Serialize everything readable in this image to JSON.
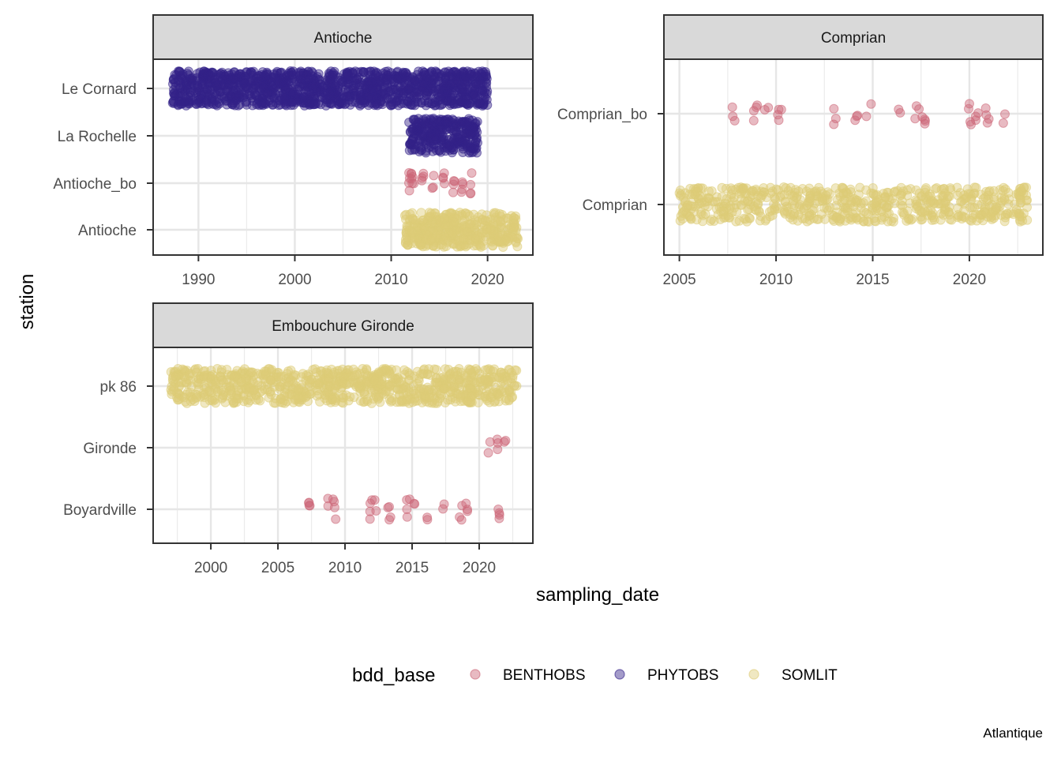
{
  "chart_data": {
    "type": "scatter",
    "x_title": "sampling_date",
    "y_title": "station",
    "legend": {
      "title": "bdd_base",
      "position": "bottom",
      "items": [
        {
          "name": "BENTHOBS",
          "color": "#cc6677"
        },
        {
          "name": "PHYTOBS",
          "color": "#332288"
        },
        {
          "name": "SOMLIT",
          "color": "#ddcc77"
        }
      ]
    },
    "caption": "Atlantique",
    "grid": true,
    "facets": [
      {
        "title": "Antioche",
        "x_ticks": [
          1990,
          2000,
          2010,
          2020
        ],
        "xlim": [
          1985.3,
          2024.7
        ],
        "stations": [
          "Antioche",
          "Antioche_bo",
          "La Rochelle",
          "Le Cornard"
        ],
        "series": [
          {
            "name": "PHYTOBS",
            "station": "Le Cornard",
            "x_range": [
              1987.3,
              2020.0
            ]
          },
          {
            "name": "PHYTOBS",
            "station": "La Rochelle",
            "x_range": [
              2011.8,
              2019.0
            ]
          },
          {
            "name": "BENTHOBS",
            "station": "Antioche_bo",
            "x": [
              2011.8,
              2012.0,
              2012.3,
              2013.3,
              2014.3,
              2015.5,
              2016.5,
              2017.3,
              2018.3
            ]
          },
          {
            "name": "SOMLIT",
            "station": "Antioche",
            "x_range": [
              2011.3,
              2023.2
            ]
          }
        ]
      },
      {
        "title": "Comprian",
        "x_ticks": [
          2005,
          2010,
          2015,
          2020
        ],
        "xlim": [
          2004.2,
          2023.8
        ],
        "stations": [
          "Comprian",
          "Comprian_bo"
        ],
        "series": [
          {
            "name": "BENTHOBS",
            "station": "Comprian_bo",
            "x": [
              2007.8,
              2008.9,
              2009.5,
              2010.2,
              2013.1,
              2014.1,
              2014.8,
              2016.3,
              2017.3,
              2017.6,
              2020.0,
              2020.4,
              2020.9,
              2021.8
            ]
          },
          {
            "name": "SOMLIT",
            "station": "Comprian",
            "x_range": [
              2005.0,
              2023.0
            ]
          }
        ]
      },
      {
        "title": "Embouchure Gironde",
        "x_ticks": [
          2000,
          2005,
          2010,
          2015,
          2020
        ],
        "xlim": [
          1995.7,
          2024.0
        ],
        "stations": [
          "Boyardville",
          "Gironde",
          "pk 86"
        ],
        "series": [
          {
            "name": "SOMLIT",
            "station": "pk 86",
            "x_range": [
              1997.0,
              2022.8
            ]
          },
          {
            "name": "BENTHOBS",
            "station": "Gironde",
            "x": [
              2020.8,
              2021.3,
              2021.9
            ]
          },
          {
            "name": "BENTHOBS",
            "station": "Boyardville",
            "x": [
              2007.3,
              2008.8,
              2009.2,
              2011.9,
              2012.2,
              2013.3,
              2014.7,
              2015.1,
              2016.1,
              2017.3,
              2018.6,
              2019.0,
              2021.5
            ]
          }
        ]
      }
    ]
  }
}
